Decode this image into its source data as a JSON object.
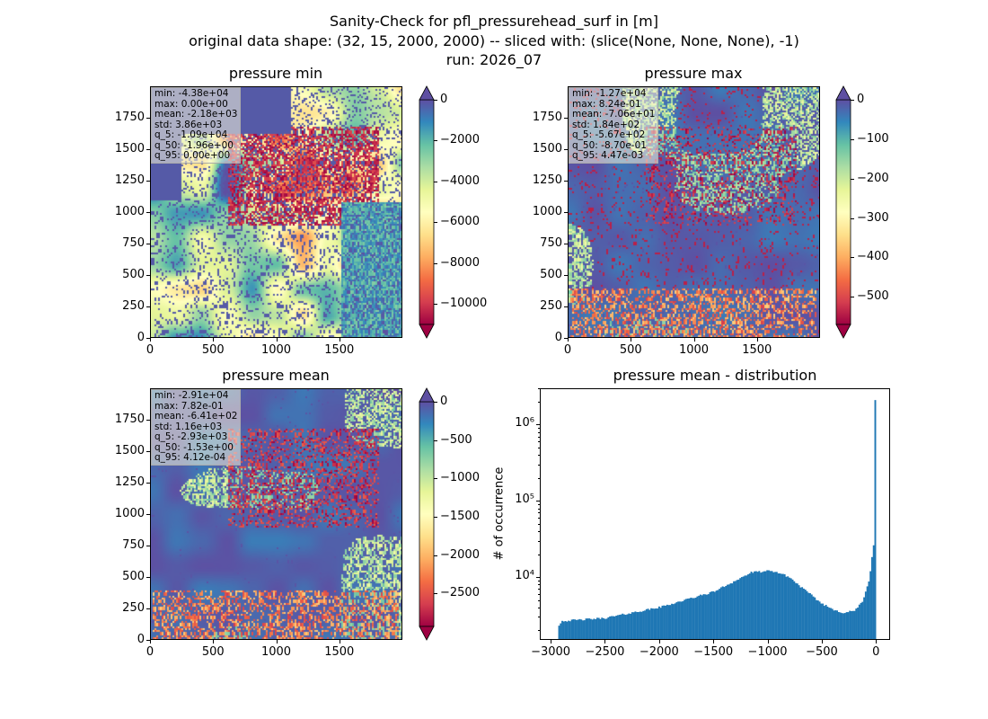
{
  "suptitle": {
    "line1": "Sanity-Check for pfl_pressurehead_surf in [m]",
    "line2": "original data shape: (32, 15, 2000, 2000) -- sliced with: (slice(None, None, None), -1)",
    "line3": "run: 2026_07"
  },
  "chart_data": [
    {
      "type": "heatmap",
      "title": "pressure min",
      "x_ticks": [
        "0",
        "500",
        "1000",
        "1500"
      ],
      "y_ticks": [
        "0",
        "250",
        "500",
        "750",
        "1000",
        "1250",
        "1500",
        "1750"
      ],
      "xlim": [
        0,
        2000
      ],
      "ylim": [
        0,
        2000
      ],
      "colormap": "Spectral",
      "colorbar": {
        "vmin": -11000,
        "vmax": 0,
        "ticks": [
          "0",
          "−2000",
          "−4000",
          "−6000",
          "−8000",
          "−10000"
        ],
        "tick_values": [
          0,
          -2000,
          -4000,
          -6000,
          -8000,
          -10000
        ],
        "extend": "both"
      },
      "stats": [
        "min: -4.38e+04",
        "max: 0.00e+00",
        "mean: -2.18e+03",
        "std: 3.86e+03",
        "q_5: -1.09e+04",
        "q_50: -1.96e+00",
        "q_95: 0.00e+00"
      ]
    },
    {
      "type": "heatmap",
      "title": "pressure max",
      "x_ticks": [
        "0",
        "500",
        "1000",
        "1500"
      ],
      "y_ticks": [
        "0",
        "250",
        "500",
        "750",
        "1000",
        "1250",
        "1500",
        "1750"
      ],
      "xlim": [
        0,
        2000
      ],
      "ylim": [
        0,
        2000
      ],
      "colormap": "Spectral",
      "colorbar": {
        "vmin": -570,
        "vmax": 0,
        "ticks": [
          "0",
          "−100",
          "−200",
          "−300",
          "−400",
          "−500"
        ],
        "tick_values": [
          0,
          -100,
          -200,
          -300,
          -400,
          -500
        ],
        "extend": "both"
      },
      "stats": [
        "min: -1.27e+04",
        "max: 8.24e-01",
        "mean: -7.06e+01",
        "std: 1.84e+02",
        "q_5: -5.67e+02",
        "q_50: -8.70e-01",
        "q_95: 4.47e-03"
      ]
    },
    {
      "type": "heatmap",
      "title": "pressure mean",
      "x_ticks": [
        "0",
        "500",
        "1000",
        "1500"
      ],
      "y_ticks": [
        "0",
        "250",
        "500",
        "750",
        "1000",
        "1250",
        "1500",
        "1750"
      ],
      "xlim": [
        0,
        2000
      ],
      "ylim": [
        0,
        2000
      ],
      "colormap": "Spectral",
      "colorbar": {
        "vmin": -2930,
        "vmax": 0,
        "ticks": [
          "0",
          "−500",
          "−1000",
          "−1500",
          "−2000",
          "−2500"
        ],
        "tick_values": [
          0,
          -500,
          -1000,
          -1500,
          -2000,
          -2500
        ],
        "extend": "both"
      },
      "stats": [
        "min: -2.91e+04",
        "max: 7.82e-01",
        "mean: -6.41e+02",
        "std: 1.16e+03",
        "q_5: -2.93e+03",
        "q_50: -1.53e+00",
        "q_95: 4.12e-04"
      ]
    },
    {
      "type": "bar",
      "title": "pressure mean - distribution",
      "ylabel": "# of occurrence",
      "xlabel": "",
      "yscale": "log",
      "xlim": [
        -3100,
        130
      ],
      "ylim": [
        1500,
        3000000
      ],
      "x_ticks": [
        "−3000",
        "−2500",
        "−2000",
        "−1500",
        "−1000",
        "−500",
        "0"
      ],
      "x_tick_values": [
        -3000,
        -2500,
        -2000,
        -1500,
        -1000,
        -500,
        0
      ],
      "y_ticks": [
        "10⁴",
        "10⁵",
        "10⁶"
      ],
      "y_tick_values": [
        10000,
        100000,
        1000000
      ],
      "color": "#1f77b4",
      "bin_range": [
        -2930,
        0
      ],
      "bins": 200,
      "curve_x": [
        -2930,
        -2900,
        -2500,
        -2000,
        -1500,
        -1300,
        -1150,
        -1000,
        -900,
        -800,
        -700,
        -500,
        -400,
        -300,
        -200,
        -120,
        -60,
        -25,
        -10
      ],
      "curve_y": [
        2250,
        2650,
        2900,
        4000,
        6400,
        8900,
        11500,
        12000,
        11500,
        10000,
        7600,
        4500,
        3800,
        3400,
        3600,
        4800,
        9500,
        26000,
        30000
      ],
      "peak_value": 2100000
    }
  ]
}
